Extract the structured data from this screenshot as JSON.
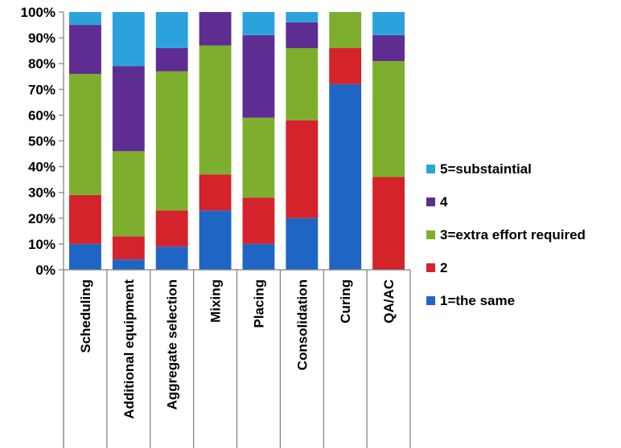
{
  "chart_data": {
    "type": "bar",
    "stacked": true,
    "categories": [
      "Scheduling",
      "Additional equipment",
      "Aggregate selection",
      "Mixing",
      "Placing",
      "Consolidation",
      "Curing",
      "QA/AC"
    ],
    "series": [
      {
        "name": "1=the same",
        "color": "#1f66c4",
        "values": [
          10,
          4,
          9,
          23,
          10,
          20,
          72,
          0
        ]
      },
      {
        "name": "2",
        "color": "#d4232a",
        "values": [
          19,
          9,
          14,
          14,
          18,
          38,
          14,
          36
        ]
      },
      {
        "name": "3=extra effort required",
        "color": "#7dae2e",
        "values": [
          47,
          33,
          54,
          50,
          31,
          28,
          14,
          45
        ]
      },
      {
        "name": "4",
        "color": "#5e2d91",
        "values": [
          19,
          33,
          9,
          13,
          32,
          10,
          0,
          10
        ]
      },
      {
        "name": "5=substaintial",
        "color": "#2ba2dc",
        "values": [
          5,
          21,
          14,
          0,
          9,
          4,
          0,
          9
        ]
      }
    ],
    "ylim": [
      0,
      100
    ],
    "yticks": [
      "0%",
      "10%",
      "20%",
      "30%",
      "40%",
      "50%",
      "60%",
      "70%",
      "80%",
      "90%",
      "100%"
    ],
    "title": "",
    "xlabel": "",
    "ylabel": "",
    "legend_position": "right",
    "grid": false
  }
}
